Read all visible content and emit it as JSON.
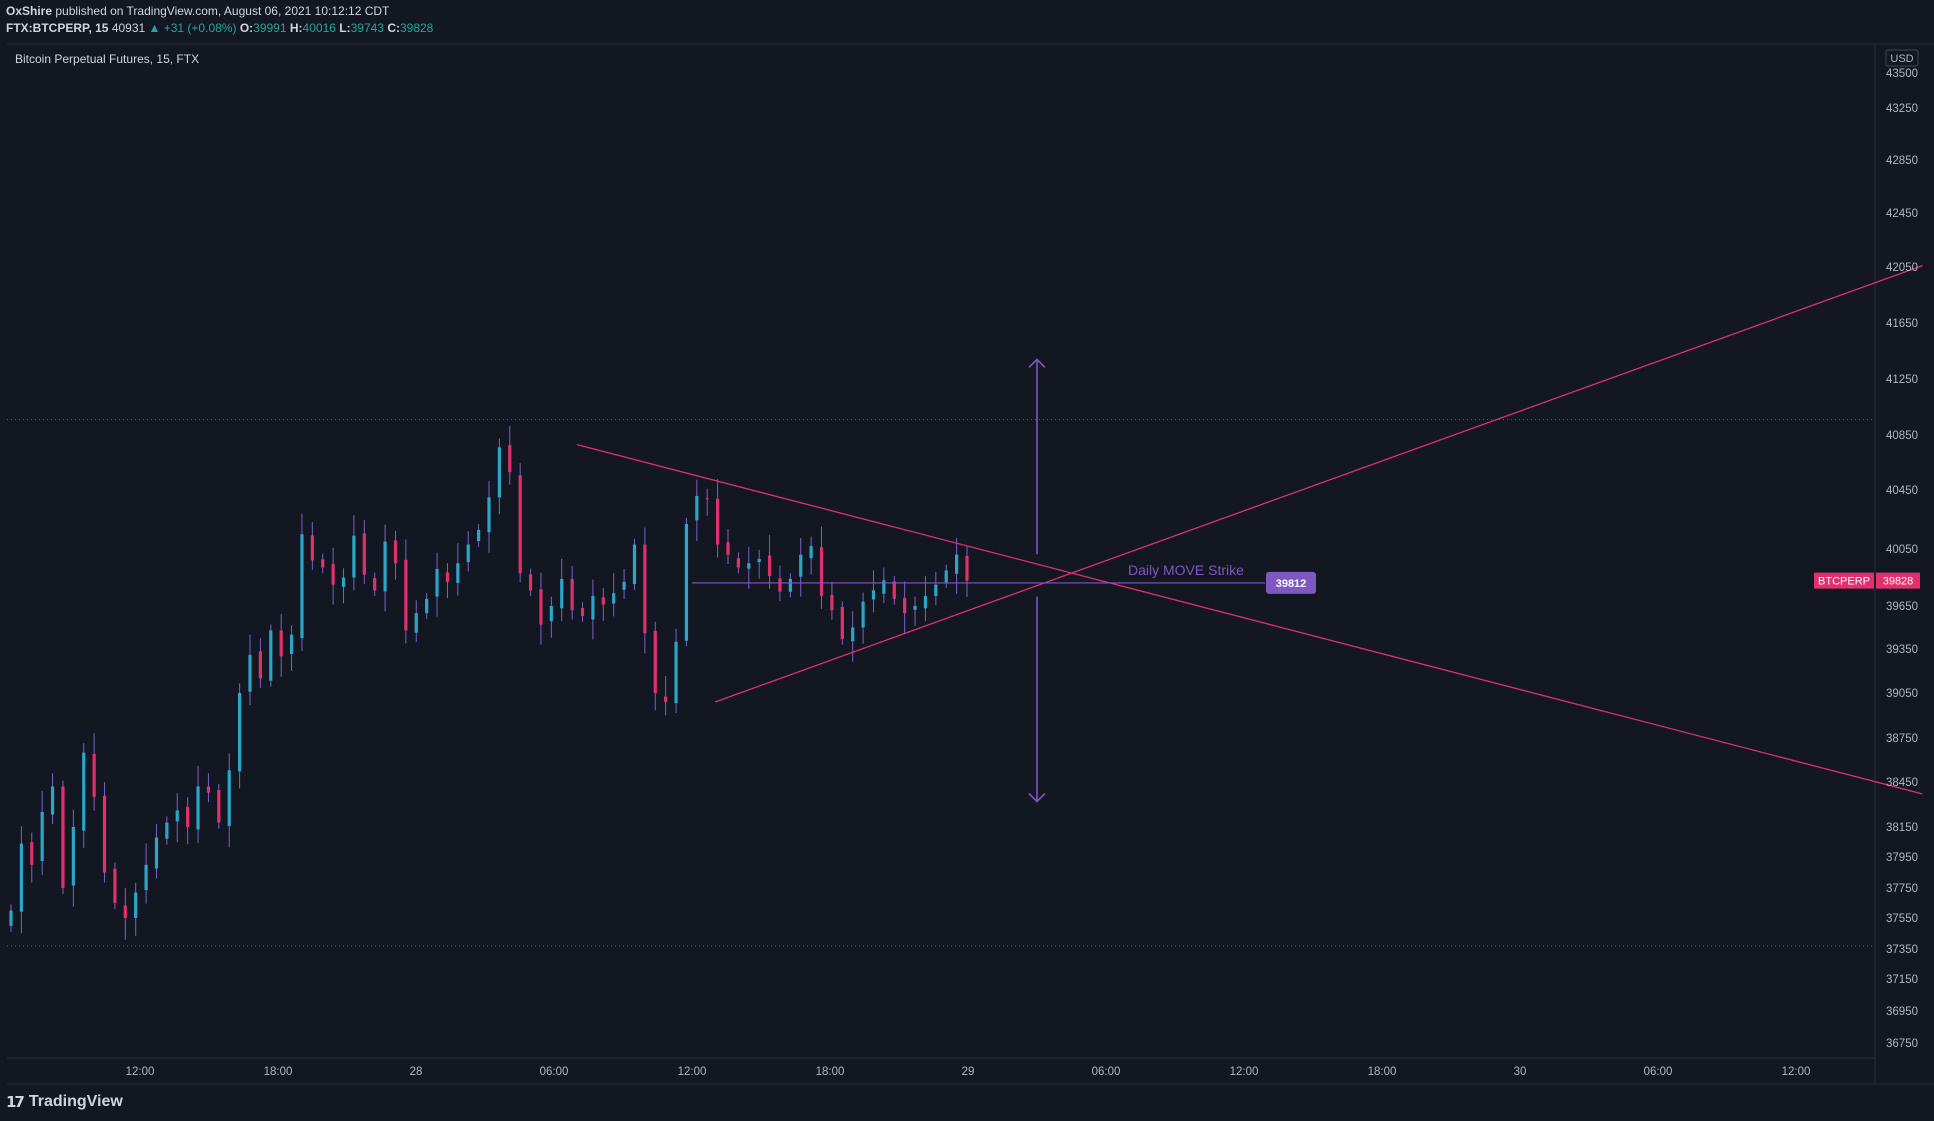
{
  "header": {
    "publisher": "OxShire",
    "published_text": "published on TradingView.com, August 06, 2021 10:12:12 CDT",
    "symbol": "FTX:BTCPERP, 15",
    "volume": "40931",
    "change": "▲ +31 (+0.08%)",
    "o_label": "O:",
    "o_value": "39991",
    "h_label": "H:",
    "h_value": "40016",
    "l_label": "L:",
    "l_value": "39743",
    "c_label": "C:",
    "c_value": "39828"
  },
  "chart_title": "Bitcoin Perpetual Futures, 15, FTX",
  "footer": {
    "logo_text": "TradingView"
  },
  "colors": {
    "background": "#131722",
    "up": "#26a69a",
    "down": "#ef5350",
    "candle_up": "#2aa6c8",
    "candle_down": "#e0306e",
    "wick": "#7b61c8",
    "trendline": "#e0306e",
    "annotation": "#7e57c2",
    "axis_text": "#b2b5be"
  },
  "chart_data": {
    "type": "candlestick",
    "currency": "USD",
    "y_ticks": [
      43500,
      43250,
      42850,
      42450,
      42050,
      41650,
      41250,
      40850,
      40450,
      40050,
      39650,
      39350,
      39050,
      38750,
      38450,
      38150,
      37950,
      37750,
      37550,
      37350,
      37150,
      36950,
      36750
    ],
    "x_ticks": [
      "12:00",
      "18:00",
      "28",
      "06:00",
      "12:00",
      "18:00",
      "29",
      "06:00",
      "12:00",
      "18:00",
      "30",
      "06:00",
      "12:00"
    ],
    "price_label": {
      "symbol": "BTCPERP",
      "value": "39828"
    },
    "annotation": {
      "text": "Daily MOVE Strike",
      "value": "39812"
    },
    "reference_levels": [
      40960,
      37370
    ],
    "trendlines": [
      {
        "from": [
          "28 07:00",
          40780
        ],
        "to": [
          "30 17:30",
          38370
        ]
      },
      {
        "from": [
          "28 13:00",
          38990
        ],
        "to": [
          "30 17:30",
          42060
        ]
      }
    ],
    "move_arrow": {
      "time": "29 03:00",
      "top": 41390,
      "bottom": 38320
    },
    "candles_summary": {
      "start_open": 37600,
      "low": 37380,
      "high": 40960,
      "high_time": "28 06:30",
      "low_time": "27 13:00",
      "last_close": 39828
    }
  }
}
